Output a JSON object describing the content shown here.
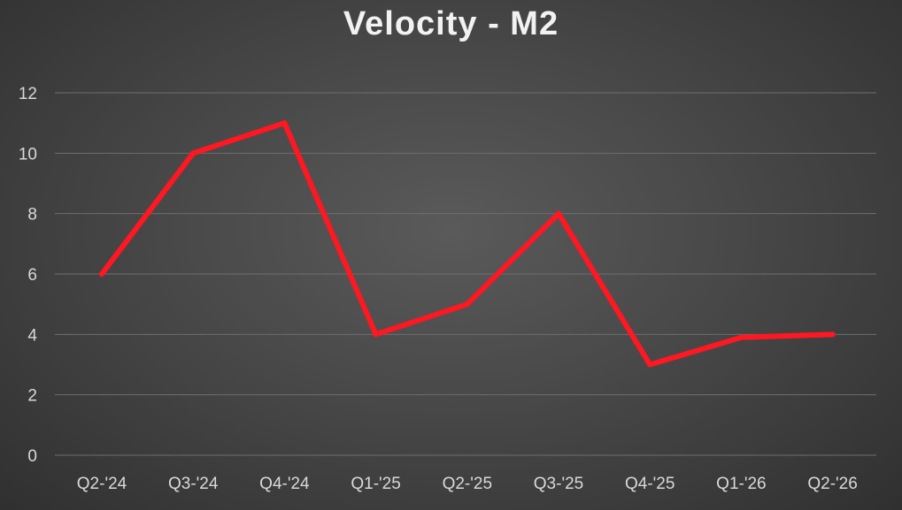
{
  "chart_data": {
    "type": "line",
    "title": "Velocity - M2",
    "categories": [
      "Q2-'24",
      "Q3-'24",
      "Q4-'24",
      "Q1-'25",
      "Q2-'25",
      "Q3-'25",
      "Q4-'25",
      "Q1-'26",
      "Q2-'26"
    ],
    "series": [
      {
        "values": [
          6,
          10,
          11,
          4,
          5,
          8,
          3,
          3.9,
          4
        ]
      }
    ],
    "yticks": [
      0,
      2,
      4,
      6,
      8,
      10,
      12
    ],
    "ylim": [
      0,
      12
    ],
    "grid": true,
    "legend": "none",
    "colors": {
      "line": "#ff1722",
      "background": "#444444",
      "grid": "#6e6e6e",
      "text": "#d9d9d9"
    }
  }
}
